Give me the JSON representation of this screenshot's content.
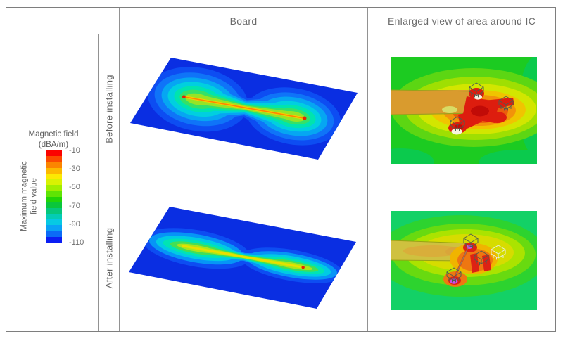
{
  "table": {
    "header": {
      "board": "Board",
      "enlarged": "Enlarged view of area around IC"
    },
    "rows": [
      {
        "label": "Before installing"
      },
      {
        "label": "After installing"
      }
    ]
  },
  "legend": {
    "title_line1": "Magnetic field",
    "title_line2": "(dBA/m)",
    "side_label_line1": "Maximum magnetic",
    "side_label_line2": "field value",
    "ticks": [
      "-10",
      "-30",
      "-50",
      "-70",
      "-90",
      "-110"
    ],
    "colorbar_colors": [
      "#fb0300",
      "#fb4a00",
      "#fb8500",
      "#fcb900",
      "#fce903",
      "#d8f203",
      "#a0ee00",
      "#5fe404",
      "#21d407",
      "#0ac63b",
      "#06c77c",
      "#04ccb4",
      "#07c9e3",
      "#0aa2f5",
      "#0b6bf7",
      "#0b1ef3"
    ]
  },
  "colors": {
    "grid_border": "#929292",
    "text": "#616161",
    "board_background_blue": "#0a2ee2",
    "hotspot_red": "#dd1d0e",
    "background_green_before": "#1ccb21",
    "background_green_after": "#13d166"
  }
}
